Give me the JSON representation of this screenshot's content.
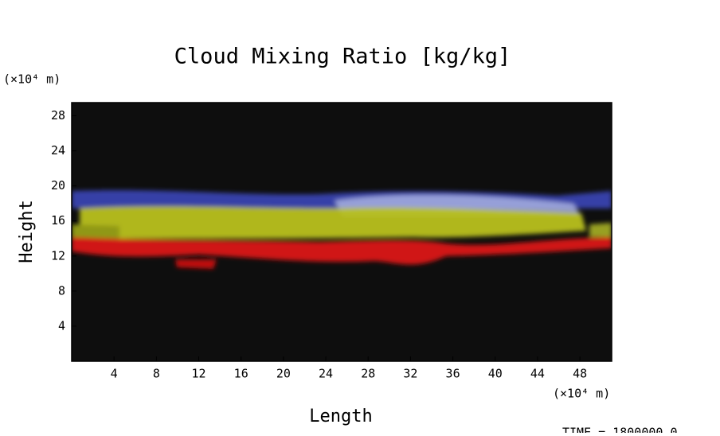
{
  "chart_data": {
    "type": "field",
    "title": "Cloud Mixing Ratio [kg/kg]",
    "x_label": "Length",
    "y_label": "Height",
    "x_unit": "(×10⁴ m)",
    "y_unit": "(×10⁴ m)",
    "time_label": "TIME = 1800000.0",
    "xlim": [
      0,
      51
    ],
    "xticks": [
      4,
      8,
      12,
      16,
      20,
      24,
      28,
      32,
      36,
      40,
      44,
      48
    ],
    "ylim": [
      0,
      29.5
    ],
    "yticks": [
      4,
      8,
      12,
      16,
      20,
      24,
      28
    ],
    "grid": false
  }
}
